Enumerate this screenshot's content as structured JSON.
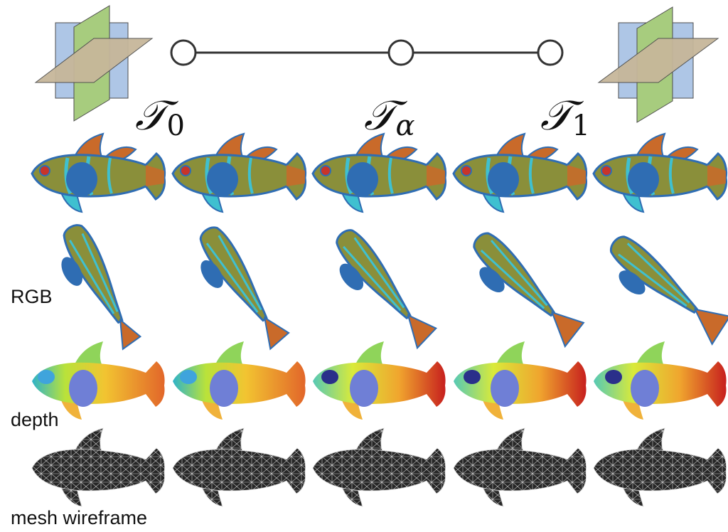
{
  "timeline": {
    "nodes": [
      {
        "symbol": "𝒯",
        "subscript": "0"
      },
      {
        "symbol": "𝒯",
        "subscript": "α"
      },
      {
        "symbol": "𝒯",
        "subscript": "1"
      }
    ]
  },
  "rows": {
    "rgb_label": "RGB",
    "depth_label": "depth",
    "mesh_label": "mesh wireframe"
  },
  "colors": {
    "plane_vertical_blue": "#aec6e6",
    "plane_vertical_green": "#a7cc7e",
    "plane_horizontal_tan": "#c7b79a",
    "fish_body": "#8a8f3a",
    "fish_blue": "#2f6db3",
    "fish_cyan": "#3fc0d0",
    "fish_orange": "#c96a2a",
    "mesh_fill": "#2a2a2a",
    "mesh_line": "#d8d8d8"
  },
  "interpolation_steps": 5
}
